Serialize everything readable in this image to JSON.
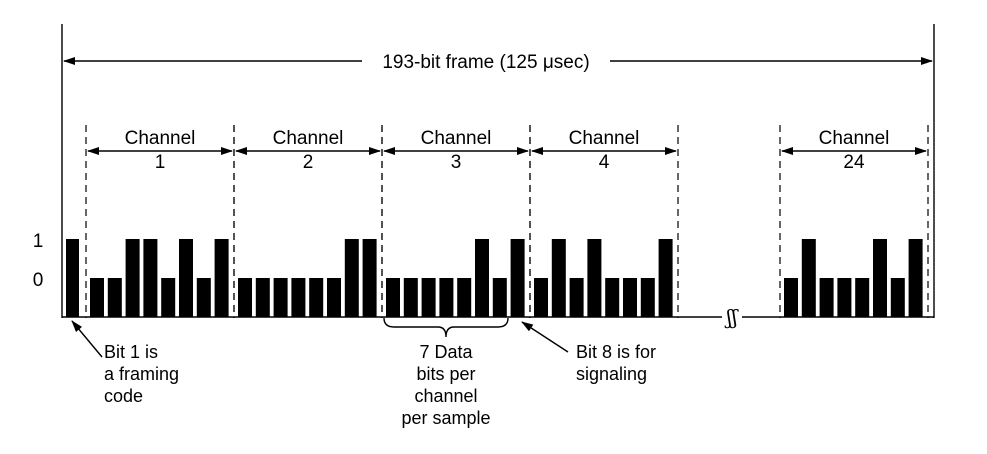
{
  "frame": {
    "label": "193-bit frame  (125 μsec)"
  },
  "level_labels": {
    "high": "1",
    "low": "0"
  },
  "channels": [
    {
      "heading": "Channel",
      "number": "1",
      "bits": [
        0,
        0,
        1,
        1,
        0,
        1,
        0,
        1
      ]
    },
    {
      "heading": "Channel",
      "number": "2",
      "bits": [
        0,
        0,
        0,
        0,
        0,
        0,
        1,
        1
      ]
    },
    {
      "heading": "Channel",
      "number": "3",
      "bits": [
        0,
        0,
        0,
        0,
        0,
        1,
        0,
        1
      ]
    },
    {
      "heading": "Channel",
      "number": "4",
      "bits": [
        0,
        1,
        0,
        1,
        0,
        0,
        0,
        1
      ]
    },
    {
      "heading": "Channel",
      "number": "24",
      "bits": [
        0,
        1,
        0,
        0,
        0,
        1,
        0,
        1
      ]
    }
  ],
  "framing_bit": 1,
  "break_symbol": "ʃʃ",
  "annotations": {
    "framing": [
      "Bit 1 is",
      "a framing",
      "code"
    ],
    "data_bits": [
      "7 Data",
      "bits per",
      "channel",
      "per sample"
    ],
    "signaling": [
      "Bit 8 is for",
      "signaling"
    ]
  }
}
